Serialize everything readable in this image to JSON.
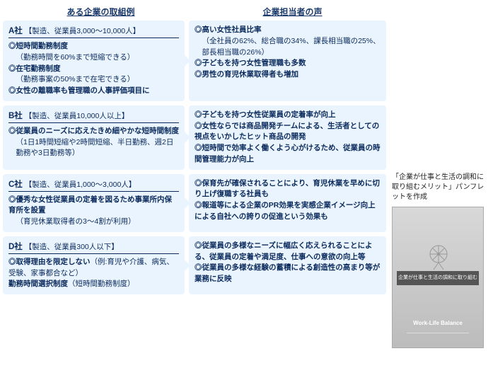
{
  "headers": {
    "left": "ある企業の取組例",
    "right": "企業担当者の声"
  },
  "companies": [
    {
      "name": "A社",
      "desc": "【製造、従業員3,000～10,000人】",
      "left": [
        {
          "lead": "◎短時間勤務制度",
          "sub": "（勤務時間を60%まで短縮できる）"
        },
        {
          "lead": "◎在宅勤務制度",
          "sub": "（勤務事案の50%まで在宅できる）"
        },
        {
          "lead": "◎女性の離職率も管理職の人事評価項目に",
          "sub": ""
        }
      ],
      "right": [
        {
          "lead": "◎高い女性社員比率",
          "sub": "（全社員の62%、総合職の34%、課長相当職の25%、部長相当職の26%）"
        },
        {
          "lead": "◎子どもを持つ女性管理職も多数",
          "sub": ""
        },
        {
          "lead": "◎男性の育児休業取得者も増加",
          "sub": ""
        }
      ]
    },
    {
      "name": "B社",
      "desc": "【製造、従業員10,000人以上】",
      "left": [
        {
          "lead": "◎従業員のニーズに応えたきめ細やかな短時間制度",
          "sub": "（1日1時間短縮や2時間短縮、半日勤務、週2日勤務や3日勤務等）"
        }
      ],
      "right": [
        {
          "lead": "◎子どもを持つ女性従業員の定着率が向上",
          "sub": ""
        },
        {
          "lead": "◎女性ならでは商品開発チームによる、生活者としての視点をいかしたヒット商品の開発",
          "sub": ""
        },
        {
          "lead": "◎短時間で効率よく働くよう心がけるため、従業員の時間管理能力が向上",
          "sub": ""
        }
      ]
    },
    {
      "name": "C社",
      "desc": "【製造、従業員1,000～3,000人】",
      "left": [
        {
          "lead": "◎優秀な女性従業員の定着を図るため事業所内保育所を設置",
          "sub": "（育児休業取得者の3～4割が利用）"
        }
      ],
      "right": [
        {
          "lead": "◎保育先が確保されることにより、育児休業を早めに切り上げ復職する社員も",
          "sub": ""
        },
        {
          "lead": "◎報道等による企業のPR効果を実感企業イメージ向上による自社への誇りの促進という効果も",
          "sub": ""
        }
      ]
    },
    {
      "name": "D社",
      "desc": "【製造、従業員300人以下】",
      "left": [
        {
          "lead": "◎取得理由を限定しない",
          "sub2": "（例:育児や介護、病気、受験、家事都合など）"
        },
        {
          "lead": "勤務時間選択制度",
          "sub2": "（短時間勤務制度）"
        }
      ],
      "right": [
        {
          "lead": "◎従業員の多様なニーズに幅広く応えられることによる、従業員の定着や満足度、仕事への意欲の向上等",
          "sub": ""
        },
        {
          "lead": "◎従業員の多様な経験の蓄積による創造性の高まり等が業務に反映",
          "sub": ""
        }
      ]
    }
  ],
  "side": {
    "caption": "「企業が仕事と生活の調和に取り組むメリット」パンフレットを作成",
    "band": "企業が仕事と生活の調和に取り組むメリット",
    "wlb": "Work-Life Balance"
  }
}
